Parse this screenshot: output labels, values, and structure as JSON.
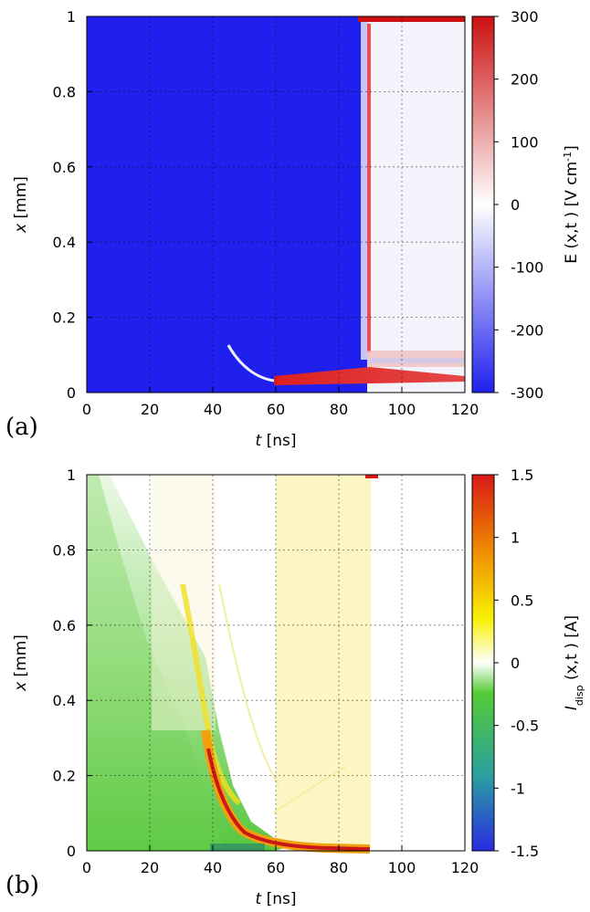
{
  "chart_data": [
    {
      "type": "heatmap",
      "panel_label": "(a)",
      "xlabel_symbol": "t",
      "xlabel_unit": "[ns]",
      "ylabel_symbol": "x",
      "ylabel_unit": "[mm]",
      "colorbar_label_main": "E (x,t ) [V cm",
      "colorbar_label_sup": "-1",
      "colorbar_label_end": "]",
      "xlim": [
        0,
        120
      ],
      "ylim": [
        0,
        1
      ],
      "clim": [
        -300,
        300
      ],
      "x_ticks": [
        "0",
        "20",
        "40",
        "60",
        "80",
        "100",
        "120"
      ],
      "y_ticks": [
        "0",
        "0.2",
        "0.4",
        "0.6",
        "0.8",
        "1"
      ],
      "colorbar_ticks": [
        "300",
        "200",
        "100",
        "0",
        "-100",
        "-200",
        "-300"
      ],
      "colormap": [
        "#2020ee",
        "#ffffff",
        "#cc1010"
      ],
      "grid": true,
      "features": {
        "background_value": -300,
        "discharge_front_t": 89,
        "after_front_value": 0,
        "cathode_sheath": {
          "t_start": 58,
          "t_end": 120,
          "x_from": 0.03,
          "x_to": 0.015,
          "value": 300
        },
        "anode_layer": {
          "t_start": 87,
          "t_end": 120,
          "x": 0.99,
          "value": 300
        },
        "precursor_curve": [
          [
            45,
            0.12
          ],
          [
            49,
            0.08
          ],
          [
            53,
            0.055
          ],
          [
            57,
            0.04
          ],
          [
            60,
            0.033
          ]
        ]
      }
    },
    {
      "type": "heatmap",
      "panel_label": "(b)",
      "xlabel_symbol": "t",
      "xlabel_unit": "[ns]",
      "ylabel_symbol": "x",
      "ylabel_unit": "[mm]",
      "colorbar_label_main": "I",
      "colorbar_label_sub": "disp",
      "colorbar_label_end": " (x,t ) [A]",
      "xlim": [
        0,
        120
      ],
      "ylim": [
        0,
        1
      ],
      "clim": [
        -1.5,
        1.5
      ],
      "x_ticks": [
        "0",
        "20",
        "40",
        "60",
        "80",
        "100",
        "120"
      ],
      "y_ticks": [
        "0",
        "0.2",
        "0.4",
        "0.6",
        "0.8",
        "1"
      ],
      "colorbar_ticks": [
        "1.5",
        "1",
        "0.5",
        "0",
        "-0.5",
        "-1",
        "-1.5"
      ],
      "colormap": [
        "#2b2be0",
        "#2aa0a0",
        "#55cc33",
        "#ffffff",
        "#f7f000",
        "#f08a00",
        "#d81818"
      ],
      "grid": true,
      "features": {
        "ionization_front": [
          [
            0,
            0.0
          ],
          [
            10,
            0.22
          ],
          [
            20,
            0.45
          ],
          [
            28,
            0.62
          ],
          [
            33,
            0.68
          ],
          [
            36,
            0.55
          ],
          [
            38,
            0.4
          ],
          [
            42,
            0.22
          ],
          [
            48,
            0.1
          ],
          [
            55,
            0.04
          ],
          [
            60,
            0.025
          ],
          [
            75,
            0.015
          ],
          [
            88,
            0.012
          ]
        ],
        "front_peak_value": 1.5,
        "yellow_band_t": [
          60,
          90
        ],
        "yellow_band_value": 0.1
      }
    }
  ]
}
